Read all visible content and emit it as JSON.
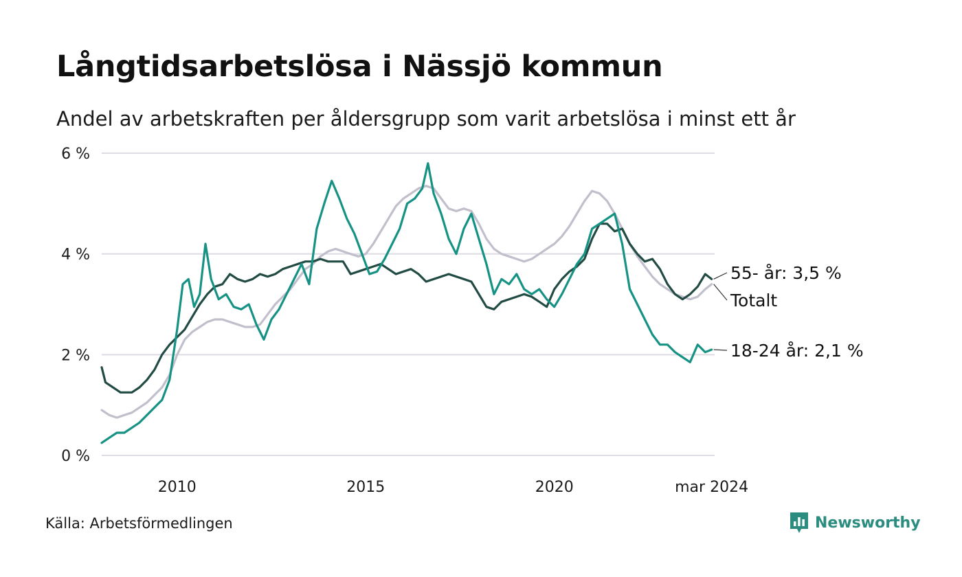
{
  "title": "Långtidsarbetslösa i Nässjö kommun",
  "subtitle": "Andel av arbetskraften per åldersgrupp som varit arbetslösa i minst ett år",
  "source": "Källa: Arbetsförmedlingen",
  "brand": {
    "name": "Newsworthy",
    "icon": "newsworthy-logo-icon",
    "color": "#2a8d80"
  },
  "chart_data": {
    "type": "line",
    "x_range": [
      2008.0,
      2024.25
    ],
    "ylim": [
      0,
      6
    ],
    "y_ticks": [
      {
        "value": 0,
        "label": "0 %"
      },
      {
        "value": 2,
        "label": "2 %"
      },
      {
        "value": 4,
        "label": "4 %"
      },
      {
        "value": 6,
        "label": "6 %"
      }
    ],
    "x_ticks": [
      {
        "value": 2010,
        "label": "2010"
      },
      {
        "value": 2015,
        "label": "2015"
      },
      {
        "value": 2020,
        "label": "2020"
      },
      {
        "value": 2024.17,
        "label": "mar 2024"
      }
    ],
    "series": [
      {
        "name": "Totalt",
        "label": "Totalt",
        "color": "#c1bfcb",
        "points": [
          [
            2008.0,
            0.9
          ],
          [
            2008.2,
            0.8
          ],
          [
            2008.4,
            0.75
          ],
          [
            2008.6,
            0.8
          ],
          [
            2008.8,
            0.85
          ],
          [
            2009.0,
            0.95
          ],
          [
            2009.2,
            1.05
          ],
          [
            2009.4,
            1.2
          ],
          [
            2009.6,
            1.35
          ],
          [
            2009.8,
            1.6
          ],
          [
            2010.0,
            2.0
          ],
          [
            2010.2,
            2.3
          ],
          [
            2010.4,
            2.45
          ],
          [
            2010.6,
            2.55
          ],
          [
            2010.8,
            2.65
          ],
          [
            2011.0,
            2.7
          ],
          [
            2011.2,
            2.7
          ],
          [
            2011.4,
            2.65
          ],
          [
            2011.6,
            2.6
          ],
          [
            2011.8,
            2.55
          ],
          [
            2012.0,
            2.55
          ],
          [
            2012.2,
            2.6
          ],
          [
            2012.4,
            2.8
          ],
          [
            2012.6,
            3.0
          ],
          [
            2012.8,
            3.15
          ],
          [
            2013.0,
            3.3
          ],
          [
            2013.2,
            3.5
          ],
          [
            2013.4,
            3.7
          ],
          [
            2013.6,
            3.8
          ],
          [
            2013.8,
            3.95
          ],
          [
            2014.0,
            4.05
          ],
          [
            2014.2,
            4.1
          ],
          [
            2014.4,
            4.05
          ],
          [
            2014.6,
            4.0
          ],
          [
            2014.8,
            3.95
          ],
          [
            2015.0,
            4.0
          ],
          [
            2015.2,
            4.2
          ],
          [
            2015.4,
            4.45
          ],
          [
            2015.6,
            4.7
          ],
          [
            2015.8,
            4.95
          ],
          [
            2016.0,
            5.1
          ],
          [
            2016.2,
            5.2
          ],
          [
            2016.4,
            5.3
          ],
          [
            2016.6,
            5.35
          ],
          [
            2016.8,
            5.3
          ],
          [
            2017.0,
            5.1
          ],
          [
            2017.2,
            4.9
          ],
          [
            2017.4,
            4.85
          ],
          [
            2017.6,
            4.9
          ],
          [
            2017.8,
            4.85
          ],
          [
            2018.0,
            4.6
          ],
          [
            2018.2,
            4.3
          ],
          [
            2018.4,
            4.1
          ],
          [
            2018.6,
            4.0
          ],
          [
            2018.8,
            3.95
          ],
          [
            2019.0,
            3.9
          ],
          [
            2019.2,
            3.85
          ],
          [
            2019.4,
            3.9
          ],
          [
            2019.6,
            4.0
          ],
          [
            2019.8,
            4.1
          ],
          [
            2020.0,
            4.2
          ],
          [
            2020.2,
            4.35
          ],
          [
            2020.4,
            4.55
          ],
          [
            2020.6,
            4.8
          ],
          [
            2020.8,
            5.05
          ],
          [
            2021.0,
            5.25
          ],
          [
            2021.2,
            5.2
          ],
          [
            2021.4,
            5.05
          ],
          [
            2021.6,
            4.8
          ],
          [
            2021.8,
            4.5
          ],
          [
            2022.0,
            4.2
          ],
          [
            2022.2,
            3.95
          ],
          [
            2022.4,
            3.75
          ],
          [
            2022.6,
            3.55
          ],
          [
            2022.8,
            3.4
          ],
          [
            2023.0,
            3.3
          ],
          [
            2023.2,
            3.2
          ],
          [
            2023.4,
            3.15
          ],
          [
            2023.6,
            3.1
          ],
          [
            2023.8,
            3.15
          ],
          [
            2024.0,
            3.3
          ],
          [
            2024.17,
            3.4
          ]
        ]
      },
      {
        "name": "55- år",
        "label": "55- år: 3,5 %",
        "color": "#224b44",
        "points": [
          [
            2008.0,
            1.75
          ],
          [
            2008.1,
            1.45
          ],
          [
            2008.3,
            1.35
          ],
          [
            2008.5,
            1.25
          ],
          [
            2008.8,
            1.25
          ],
          [
            2009.0,
            1.35
          ],
          [
            2009.2,
            1.5
          ],
          [
            2009.4,
            1.7
          ],
          [
            2009.6,
            2.0
          ],
          [
            2009.8,
            2.2
          ],
          [
            2010.0,
            2.35
          ],
          [
            2010.2,
            2.5
          ],
          [
            2010.4,
            2.75
          ],
          [
            2010.6,
            3.0
          ],
          [
            2010.8,
            3.2
          ],
          [
            2011.0,
            3.35
          ],
          [
            2011.2,
            3.4
          ],
          [
            2011.4,
            3.6
          ],
          [
            2011.6,
            3.5
          ],
          [
            2011.8,
            3.45
          ],
          [
            2012.0,
            3.5
          ],
          [
            2012.2,
            3.6
          ],
          [
            2012.4,
            3.55
          ],
          [
            2012.6,
            3.6
          ],
          [
            2012.8,
            3.7
          ],
          [
            2013.0,
            3.75
          ],
          [
            2013.2,
            3.8
          ],
          [
            2013.4,
            3.85
          ],
          [
            2013.6,
            3.85
          ],
          [
            2013.8,
            3.9
          ],
          [
            2014.0,
            3.85
          ],
          [
            2014.2,
            3.85
          ],
          [
            2014.4,
            3.85
          ],
          [
            2014.6,
            3.6
          ],
          [
            2014.8,
            3.65
          ],
          [
            2015.0,
            3.7
          ],
          [
            2015.2,
            3.75
          ],
          [
            2015.4,
            3.8
          ],
          [
            2015.6,
            3.7
          ],
          [
            2015.8,
            3.6
          ],
          [
            2016.0,
            3.65
          ],
          [
            2016.2,
            3.7
          ],
          [
            2016.4,
            3.6
          ],
          [
            2016.6,
            3.45
          ],
          [
            2016.8,
            3.5
          ],
          [
            2017.0,
            3.55
          ],
          [
            2017.2,
            3.6
          ],
          [
            2017.4,
            3.55
          ],
          [
            2017.6,
            3.5
          ],
          [
            2017.8,
            3.45
          ],
          [
            2018.0,
            3.2
          ],
          [
            2018.2,
            2.95
          ],
          [
            2018.4,
            2.9
          ],
          [
            2018.6,
            3.05
          ],
          [
            2018.8,
            3.1
          ],
          [
            2019.0,
            3.15
          ],
          [
            2019.2,
            3.2
          ],
          [
            2019.4,
            3.15
          ],
          [
            2019.6,
            3.05
          ],
          [
            2019.8,
            2.95
          ],
          [
            2020.0,
            3.3
          ],
          [
            2020.2,
            3.5
          ],
          [
            2020.4,
            3.65
          ],
          [
            2020.6,
            3.75
          ],
          [
            2020.8,
            3.9
          ],
          [
            2021.0,
            4.3
          ],
          [
            2021.2,
            4.6
          ],
          [
            2021.4,
            4.6
          ],
          [
            2021.6,
            4.45
          ],
          [
            2021.8,
            4.5
          ],
          [
            2022.0,
            4.2
          ],
          [
            2022.2,
            4.0
          ],
          [
            2022.4,
            3.85
          ],
          [
            2022.6,
            3.9
          ],
          [
            2022.8,
            3.7
          ],
          [
            2023.0,
            3.4
          ],
          [
            2023.2,
            3.2
          ],
          [
            2023.4,
            3.1
          ],
          [
            2023.6,
            3.2
          ],
          [
            2023.8,
            3.35
          ],
          [
            2024.0,
            3.6
          ],
          [
            2024.17,
            3.5
          ]
        ]
      },
      {
        "name": "18-24 år",
        "label": "18-24 år: 2,1 %",
        "color": "#169285",
        "points": [
          [
            2008.0,
            0.25
          ],
          [
            2008.2,
            0.35
          ],
          [
            2008.4,
            0.45
          ],
          [
            2008.6,
            0.45
          ],
          [
            2008.8,
            0.55
          ],
          [
            2009.0,
            0.65
          ],
          [
            2009.2,
            0.8
          ],
          [
            2009.4,
            0.95
          ],
          [
            2009.6,
            1.1
          ],
          [
            2009.8,
            1.5
          ],
          [
            2010.0,
            2.5
          ],
          [
            2010.15,
            3.4
          ],
          [
            2010.3,
            3.5
          ],
          [
            2010.45,
            2.95
          ],
          [
            2010.6,
            3.2
          ],
          [
            2010.75,
            4.2
          ],
          [
            2010.9,
            3.5
          ],
          [
            2011.1,
            3.1
          ],
          [
            2011.3,
            3.2
          ],
          [
            2011.5,
            2.95
          ],
          [
            2011.7,
            2.9
          ],
          [
            2011.9,
            3.0
          ],
          [
            2012.1,
            2.6
          ],
          [
            2012.3,
            2.3
          ],
          [
            2012.5,
            2.7
          ],
          [
            2012.7,
            2.9
          ],
          [
            2012.9,
            3.2
          ],
          [
            2013.1,
            3.5
          ],
          [
            2013.3,
            3.8
          ],
          [
            2013.5,
            3.4
          ],
          [
            2013.7,
            4.5
          ],
          [
            2013.9,
            5.0
          ],
          [
            2014.1,
            5.45
          ],
          [
            2014.3,
            5.1
          ],
          [
            2014.5,
            4.7
          ],
          [
            2014.7,
            4.4
          ],
          [
            2014.9,
            4.0
          ],
          [
            2015.1,
            3.6
          ],
          [
            2015.3,
            3.65
          ],
          [
            2015.5,
            3.9
          ],
          [
            2015.7,
            4.2
          ],
          [
            2015.9,
            4.5
          ],
          [
            2016.1,
            5.0
          ],
          [
            2016.3,
            5.1
          ],
          [
            2016.5,
            5.3
          ],
          [
            2016.65,
            5.8
          ],
          [
            2016.8,
            5.2
          ],
          [
            2017.0,
            4.8
          ],
          [
            2017.2,
            4.3
          ],
          [
            2017.4,
            4.0
          ],
          [
            2017.6,
            4.5
          ],
          [
            2017.8,
            4.8
          ],
          [
            2018.0,
            4.3
          ],
          [
            2018.2,
            3.8
          ],
          [
            2018.4,
            3.2
          ],
          [
            2018.6,
            3.5
          ],
          [
            2018.8,
            3.4
          ],
          [
            2019.0,
            3.6
          ],
          [
            2019.2,
            3.3
          ],
          [
            2019.4,
            3.2
          ],
          [
            2019.6,
            3.3
          ],
          [
            2019.8,
            3.1
          ],
          [
            2020.0,
            2.95
          ],
          [
            2020.2,
            3.2
          ],
          [
            2020.4,
            3.5
          ],
          [
            2020.6,
            3.8
          ],
          [
            2020.8,
            4.0
          ],
          [
            2021.0,
            4.5
          ],
          [
            2021.2,
            4.6
          ],
          [
            2021.4,
            4.7
          ],
          [
            2021.6,
            4.8
          ],
          [
            2021.8,
            4.2
          ],
          [
            2022.0,
            3.3
          ],
          [
            2022.2,
            3.0
          ],
          [
            2022.4,
            2.7
          ],
          [
            2022.6,
            2.4
          ],
          [
            2022.8,
            2.2
          ],
          [
            2023.0,
            2.2
          ],
          [
            2023.2,
            2.05
          ],
          [
            2023.4,
            1.95
          ],
          [
            2023.6,
            1.85
          ],
          [
            2023.8,
            2.2
          ],
          [
            2024.0,
            2.05
          ],
          [
            2024.17,
            2.1
          ]
        ]
      }
    ]
  }
}
